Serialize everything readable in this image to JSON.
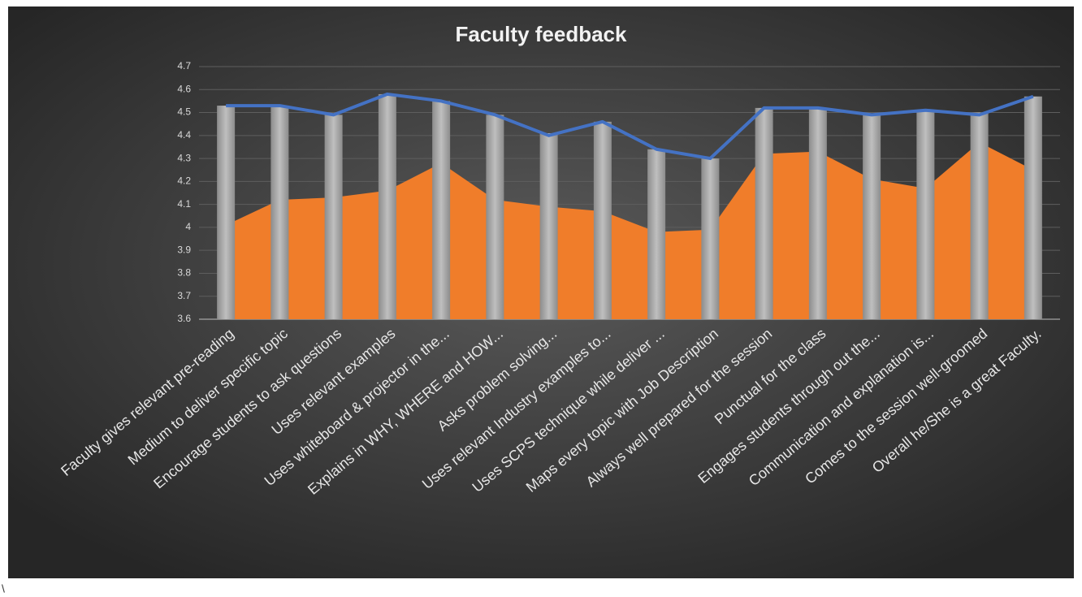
{
  "chart_data": {
    "type": "combo",
    "title": "Faculty feedback",
    "note": "\\",
    "categories": [
      "Faculty gives relevant pre-reading",
      "Medium to deliver specific topic",
      "Encourage students to ask questions",
      "Uses relevant examples",
      "Uses whiteboard & projector in the...",
      "Explains in WHY, WHERE and HOW...",
      "Asks problem solving...",
      "Uses relevant Industry examples to...",
      "Uses SCPS technique while deliver ...",
      "Maps every topic with Job Description",
      "Always well prepared for the session",
      "Punctual for the class",
      "Engages students through out the...",
      "Communication and explanation is...",
      "Comes to the session well-groomed",
      "Overall he/She is a great Faculty."
    ],
    "series": [
      {
        "type": "area",
        "color": "#f07d2a",
        "values": [
          4.01,
          4.12,
          4.13,
          4.16,
          4.28,
          4.12,
          4.09,
          4.07,
          3.98,
          3.99,
          4.32,
          4.33,
          4.21,
          4.17,
          4.37,
          4.25
        ]
      },
      {
        "type": "bar",
        "color": "#a6a6a6",
        "values": [
          4.53,
          4.53,
          4.49,
          4.58,
          4.55,
          4.49,
          4.41,
          4.46,
          4.34,
          4.3,
          4.52,
          4.52,
          4.49,
          4.51,
          4.5,
          4.57
        ]
      },
      {
        "type": "line",
        "color": "#4472c4",
        "values": [
          4.53,
          4.53,
          4.49,
          4.58,
          4.55,
          4.49,
          4.4,
          4.46,
          4.34,
          4.3,
          4.52,
          4.52,
          4.49,
          4.51,
          4.49,
          4.57
        ]
      }
    ],
    "ylim": [
      3.6,
      4.7
    ],
    "yticks": [
      3.6,
      3.7,
      3.8,
      3.9,
      4,
      4.1,
      4.2,
      4.3,
      4.4,
      4.5,
      4.6,
      4.7
    ],
    "grid": true
  }
}
